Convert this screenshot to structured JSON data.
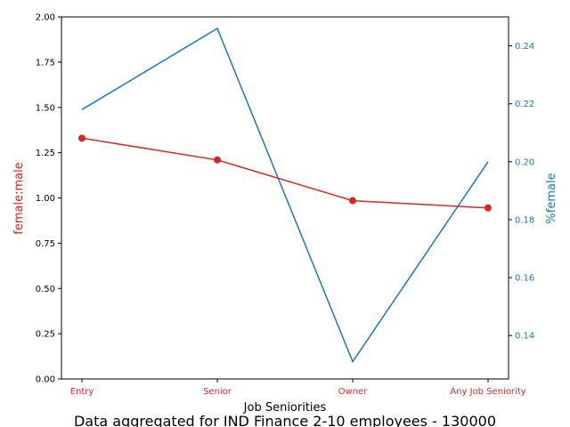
{
  "chart_data": {
    "type": "line",
    "categories": [
      "Entry",
      "Senior",
      "Owner",
      "Any Job Seniority"
    ],
    "xlabel": "Job Seniorities",
    "caption": "Data aggregated for IND Finance 2-10 employees - 130000",
    "left_axis": {
      "label": "female:male",
      "range": [
        0,
        2
      ],
      "ticks": [
        "0.00",
        "0.25",
        "0.50",
        "0.75",
        "1.00",
        "1.25",
        "1.50",
        "1.75",
        "2.00"
      ],
      "color": "#d62728"
    },
    "right_axis": {
      "label": "%female",
      "range": [
        0.125,
        0.25
      ],
      "ticks": [
        "0.14",
        "0.16",
        "0.18",
        "0.20",
        "0.22",
        "0.24"
      ],
      "color": "#1f77b4"
    },
    "series": [
      {
        "axis": "left",
        "color": "#d62728",
        "markers": true,
        "values": [
          1.33,
          1.21,
          0.985,
          0.945
        ]
      },
      {
        "axis": "right",
        "color": "#1f77b4",
        "markers": false,
        "values": [
          0.218,
          0.246,
          0.131,
          0.2
        ]
      }
    ]
  }
}
